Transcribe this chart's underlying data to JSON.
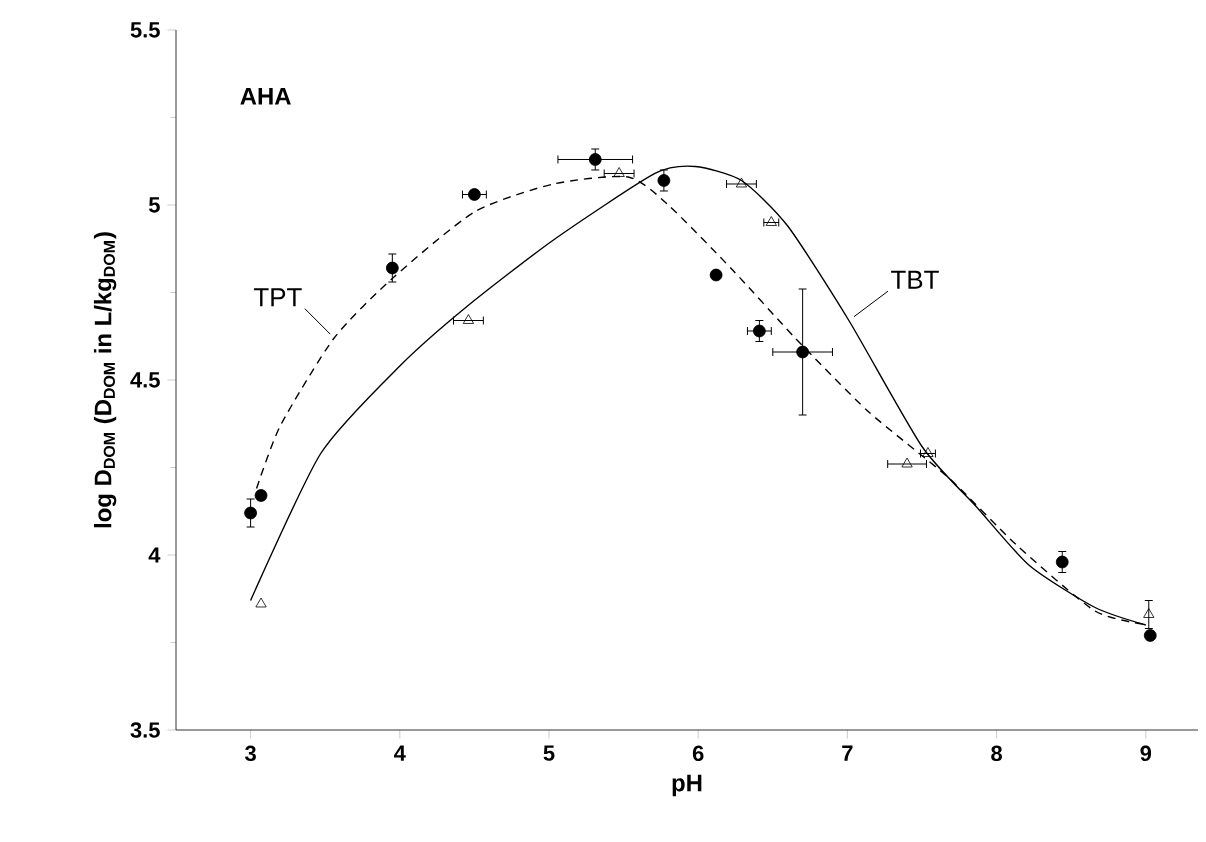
{
  "chart_data": {
    "type": "scatter",
    "xlabel": "pH",
    "ylabel": "log D$_{DOM}$ (D$_{DOM}$ in L/kg$_{DOM}$)",
    "xlim": [
      2.5,
      9.35
    ],
    "ylim": [
      3.5,
      5.5
    ],
    "xticks": [
      3,
      4,
      5,
      6,
      7,
      8,
      9
    ],
    "yticks": [
      3.5,
      4,
      4.5,
      5,
      5.5
    ],
    "annotations": [
      "AHA"
    ],
    "series": [
      {
        "marker": "circle",
        "color": "#000000",
        "x": [
          3.0,
          3.07,
          3.95,
          4.5,
          5.31,
          5.77,
          6.12,
          6.41,
          6.7,
          8.44,
          9.03
        ],
        "values": [
          4.12,
          4.17,
          4.82,
          5.03,
          5.13,
          5.07,
          4.8,
          4.64,
          4.58,
          3.98,
          3.77
        ],
        "errors": [
          0.04,
          null,
          0.04,
          null,
          0.03,
          0.03,
          null,
          0.03,
          0.18,
          0.03,
          null
        ],
        "xerrors": [
          null,
          null,
          null,
          0.08,
          0.25,
          null,
          null,
          0.08,
          0.2,
          null,
          null
        ]
      },
      {
        "marker": "triangle",
        "color": "#000000",
        "x": [
          3.07,
          4.46,
          5.47,
          6.29,
          6.49,
          7.4,
          7.54,
          9.02
        ],
        "values": [
          3.86,
          4.67,
          5.09,
          5.06,
          4.95,
          4.26,
          4.29,
          3.83
        ],
        "errors": [
          null,
          null,
          null,
          null,
          null,
          null,
          null,
          0.04
        ],
        "xerrors": [
          null,
          0.1,
          0.1,
          0.1,
          0.05,
          0.13,
          0.05,
          null
        ]
      },
      {
        "type": "line",
        "name": "TPT",
        "line_style": "dashed",
        "color": "#000000",
        "x": [
          3.04,
          3.2,
          3.56,
          3.95,
          4.5,
          5.03,
          5.53,
          5.8,
          6.24,
          6.65,
          7.14,
          7.68,
          8.13,
          8.66,
          9.02
        ],
        "values": [
          4.19,
          4.37,
          4.62,
          4.79,
          4.98,
          5.06,
          5.08,
          5.0,
          4.81,
          4.62,
          4.41,
          4.22,
          4.03,
          3.84,
          3.8
        ]
      },
      {
        "type": "line",
        "name": "TBT",
        "line_style": "solid",
        "color": "#000000",
        "x": [
          3.0,
          3.47,
          4.0,
          4.45,
          5.03,
          5.71,
          5.98,
          6.29,
          6.6,
          7.01,
          7.5,
          7.86,
          8.22,
          8.66,
          9.0
        ],
        "values": [
          3.87,
          4.29,
          4.54,
          4.71,
          4.9,
          5.09,
          5.11,
          5.07,
          4.94,
          4.67,
          4.31,
          4.14,
          3.97,
          3.85,
          3.8
        ]
      }
    ]
  }
}
